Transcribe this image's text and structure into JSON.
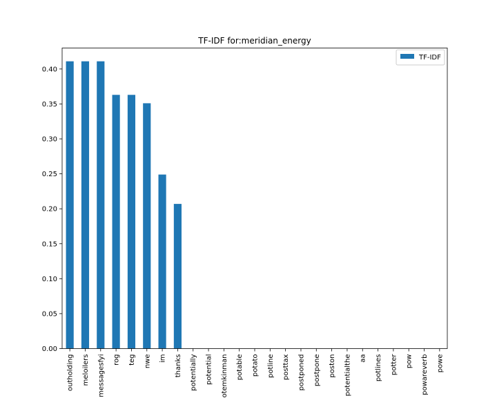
{
  "chart_data": {
    "type": "bar",
    "title": "TF-IDF for:meridian_energy",
    "xlabel": "",
    "ylabel": "",
    "ylim": [
      0,
      0.43
    ],
    "yticks": [
      0.0,
      0.05,
      0.1,
      0.15,
      0.2,
      0.25,
      0.3,
      0.35,
      0.4
    ],
    "grid": false,
    "legend_position": "top-right",
    "color": "#1f77b4",
    "categories": [
      "outholding",
      "meloilers",
      "messagesfyi",
      "rog",
      "teg",
      "nwe",
      "im",
      "thanks",
      "potentially",
      "potential",
      "otemkinman",
      "potable",
      "potato",
      "potline",
      "posttax",
      "postponed",
      "postpone",
      "poston",
      "potentialthe",
      "aa",
      "potlines",
      "potter",
      "pow",
      "powareverb",
      "powe"
    ],
    "series": [
      {
        "name": "TF-IDF",
        "values": [
          0.411,
          0.411,
          0.411,
          0.363,
          0.363,
          0.351,
          0.249,
          0.207,
          0,
          0,
          0,
          0,
          0,
          0,
          0,
          0,
          0,
          0,
          0,
          0,
          0,
          0,
          0,
          0,
          0
        ]
      }
    ]
  }
}
